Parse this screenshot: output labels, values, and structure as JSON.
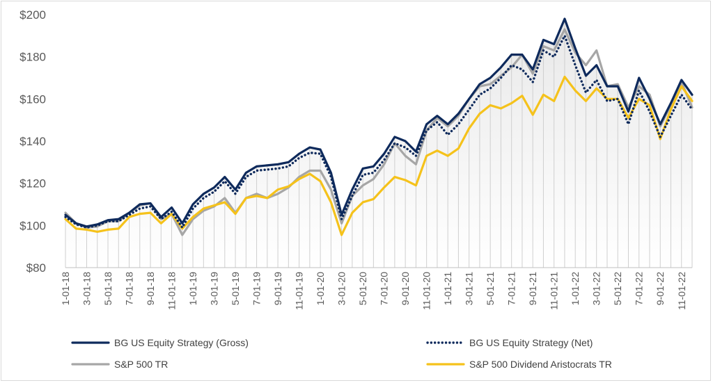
{
  "chart_data": {
    "type": "line",
    "title": "",
    "xlabel": "",
    "ylabel": "",
    "ylim": [
      80,
      200
    ],
    "y_ticks": [
      "$80",
      "$100",
      "$120",
      "$140",
      "$160",
      "$180",
      "$200"
    ],
    "x": [
      "1-01-18",
      "2-01-18",
      "3-01-18",
      "4-01-18",
      "5-01-18",
      "6-01-18",
      "7-01-18",
      "8-01-18",
      "9-01-18",
      "10-01-18",
      "11-01-18",
      "12-01-18",
      "1-01-19",
      "2-01-19",
      "3-01-19",
      "4-01-19",
      "5-01-19",
      "6-01-19",
      "7-01-19",
      "8-01-19",
      "9-01-19",
      "10-01-19",
      "11-01-19",
      "12-01-19",
      "1-01-20",
      "2-01-20",
      "3-01-20",
      "4-01-20",
      "5-01-20",
      "6-01-20",
      "7-01-20",
      "8-01-20",
      "9-01-20",
      "10-01-20",
      "11-01-20",
      "12-01-20",
      "1-01-21",
      "2-01-21",
      "3-01-21",
      "4-01-21",
      "5-01-21",
      "6-01-21",
      "7-01-21",
      "8-01-21",
      "9-01-21",
      "10-01-21",
      "11-01-21",
      "12-01-21",
      "1-01-22",
      "2-01-22",
      "3-01-22",
      "4-01-22",
      "5-01-22",
      "6-01-22",
      "7-01-22",
      "8-01-22",
      "9-01-22",
      "10-01-22",
      "11-01-22",
      "12-01-22"
    ],
    "x_tick_labels": [
      "1-01-18",
      "3-01-18",
      "5-01-18",
      "7-01-18",
      "9-01-18",
      "11-01-18",
      "1-01-19",
      "3-01-19",
      "5-01-19",
      "7-01-19",
      "9-01-19",
      "11-01-19",
      "1-01-20",
      "3-01-20",
      "5-01-20",
      "7-01-20",
      "9-01-20",
      "11-01-20",
      "1-01-21",
      "3-01-21",
      "5-01-21",
      "7-01-21",
      "9-01-21",
      "11-01-21",
      "1-01-22",
      "3-01-22",
      "5-01-22",
      "7-01-22",
      "9-01-22",
      "11-01-22"
    ],
    "grid": "vertical lines at each month, light gray area under gross series",
    "legend_position": "bottom",
    "series": [
      {
        "name": "BG US Equity Strategy (Gross)",
        "color": "#0e2a5c",
        "style": "solid",
        "values": [
          105,
          101,
          99.5,
          100.5,
          102.5,
          103,
          106,
          110,
          110.5,
          104,
          108.5,
          101,
          110,
          115,
          118,
          123,
          117,
          125,
          128,
          128.5,
          129,
          130,
          134,
          137,
          136,
          125,
          105,
          117,
          127,
          128,
          134,
          142,
          140,
          135,
          148,
          152,
          148,
          153,
          160,
          167,
          170,
          175,
          181,
          181,
          174,
          188,
          186,
          198,
          184,
          171,
          176,
          166,
          166,
          154,
          170,
          160,
          148,
          158,
          169,
          162
        ]
      },
      {
        "name": "BG US Equity Strategy (Net)",
        "color": "#0e2a5c",
        "style": "dotted",
        "values": [
          104,
          100.5,
          99,
          100,
          102,
          102,
          105,
          108,
          109,
          103,
          106.5,
          99,
          108,
          113,
          116,
          121,
          115,
          123,
          126,
          126.5,
          127,
          128,
          132,
          134.5,
          134,
          123,
          103,
          114,
          124,
          125,
          131,
          139,
          137,
          133,
          145,
          149,
          143,
          148,
          155,
          162,
          165,
          170,
          176,
          174,
          168,
          183,
          180,
          190,
          176,
          163,
          169,
          159,
          160,
          148,
          164,
          154,
          142,
          152,
          162,
          155
        ]
      },
      {
        "name": "S&P 500 TR",
        "color": "#a6a6a6",
        "style": "solid",
        "values": [
          106,
          101,
          99,
          99.5,
          102,
          102,
          106,
          109.5,
          110.5,
          103,
          105.5,
          95.5,
          103,
          107,
          109,
          113,
          106,
          113,
          115,
          113,
          115,
          118,
          123,
          126,
          126,
          117,
          101,
          114,
          119,
          122,
          129,
          139,
          133,
          129,
          145,
          151,
          147,
          152,
          160,
          166,
          167,
          171,
          175,
          181,
          172,
          185,
          183,
          193,
          182,
          176,
          183,
          166,
          167,
          156,
          166,
          162,
          147,
          157,
          168,
          156
        ]
      },
      {
        "name": "S&P 500 Dividend Aristocrats TR",
        "color": "#f5c21b",
        "style": "solid",
        "values": [
          103,
          98.5,
          98,
          97,
          98,
          98.5,
          104,
          105.5,
          106,
          101,
          105.5,
          98.5,
          104,
          108,
          109.5,
          111,
          105.5,
          113,
          114,
          113,
          117,
          118.5,
          122,
          124.5,
          121,
          111,
          95.5,
          106,
          111,
          112.5,
          118,
          123,
          121.5,
          119,
          133,
          135.5,
          133,
          136.5,
          146,
          153,
          157,
          155.5,
          158,
          161.5,
          152.5,
          162,
          159,
          170.5,
          164,
          159,
          165,
          160,
          160,
          151,
          160,
          157,
          141,
          155,
          166,
          159
        ]
      }
    ]
  }
}
